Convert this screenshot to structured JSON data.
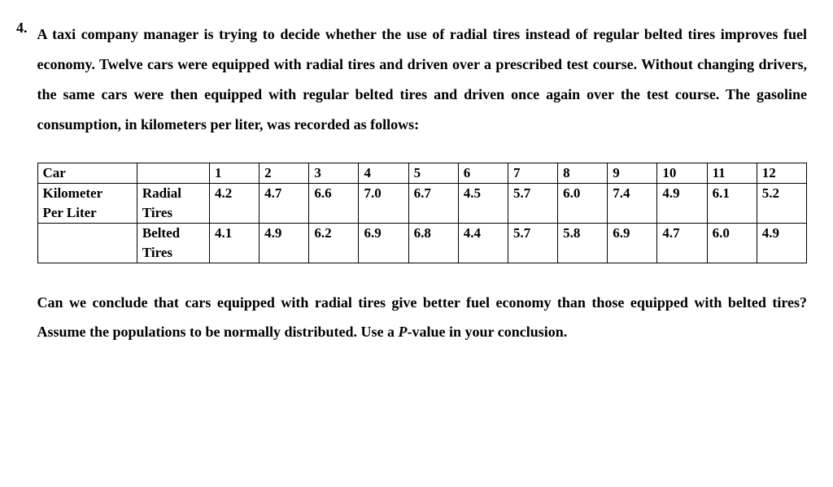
{
  "problem_number": "4.",
  "prompt_text": "A taxi company manager is trying to decide whether the use of radial tires instead of regular belted tires improves fuel economy. Twelve cars were equipped with radial tires and driven over a prescribed test course. Without changing drivers, the same cars were then equipped with regular belted tires and driven once again over the test course. The gasoline consumption, in kilometers per liter, was recorded as follows:",
  "table": {
    "header_label": "Car",
    "row_group_label_line1": "Kilometer",
    "row_group_label_line2": "Per Liter",
    "row1_label_line1": "Radial",
    "row1_label_line2": "Tires",
    "row2_label_line1": "Belted",
    "row2_label_line2": "Tires",
    "columns": [
      "1",
      "2",
      "3",
      "4",
      "5",
      "6",
      "7",
      "8",
      "9",
      "10",
      "11",
      "12"
    ],
    "radial": [
      "4.2",
      "4.7",
      "6.6",
      "7.0",
      "6.7",
      "4.5",
      "5.7",
      "6.0",
      "7.4",
      "4.9",
      "6.1",
      "5.2"
    ],
    "belted": [
      "4.1",
      "4.9",
      "6.2",
      "6.9",
      "6.8",
      "4.4",
      "5.7",
      "5.8",
      "6.9",
      "4.7",
      "6.0",
      "4.9"
    ]
  },
  "conclusion_pre": "Can we conclude that cars equipped with radial tires give better fuel economy than those equipped with belted tires? Assume the populations to be normally distributed. Use a ",
  "pvalue_label": "P",
  "conclusion_post": "-value in your conclusion."
}
